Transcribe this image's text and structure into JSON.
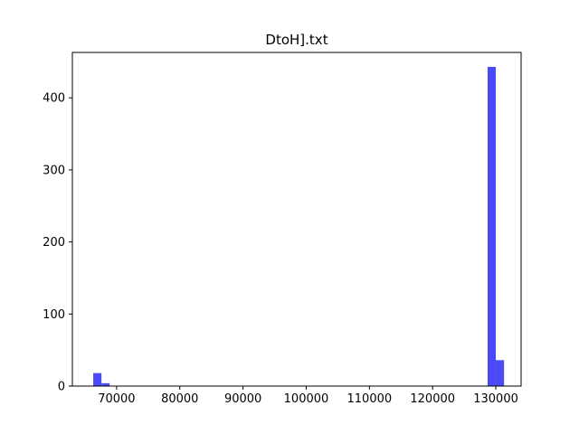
{
  "chart_data": {
    "type": "bar",
    "title": "DtoH].txt",
    "xlabel": "",
    "ylabel": "",
    "xlim": [
      63000,
      134000
    ],
    "ylim": [
      0,
      463
    ],
    "xticks": [
      70000,
      80000,
      90000,
      100000,
      110000,
      120000,
      130000
    ],
    "xtick_labels": [
      "70000",
      "80000",
      "90000",
      "100000",
      "110000",
      "120000",
      "130000"
    ],
    "yticks": [
      0,
      100,
      200,
      300,
      400
    ],
    "ytick_labels": [
      "0",
      "100",
      "200",
      "300",
      "400"
    ],
    "grid": false,
    "bar_color": "#4a4af7",
    "bars": [
      {
        "x0": 66300,
        "x1": 67600,
        "value": 18
      },
      {
        "x0": 67600,
        "x1": 68900,
        "value": 4
      },
      {
        "x0": 128700,
        "x1": 130000,
        "value": 443
      },
      {
        "x0": 130000,
        "x1": 131300,
        "value": 36
      }
    ]
  }
}
